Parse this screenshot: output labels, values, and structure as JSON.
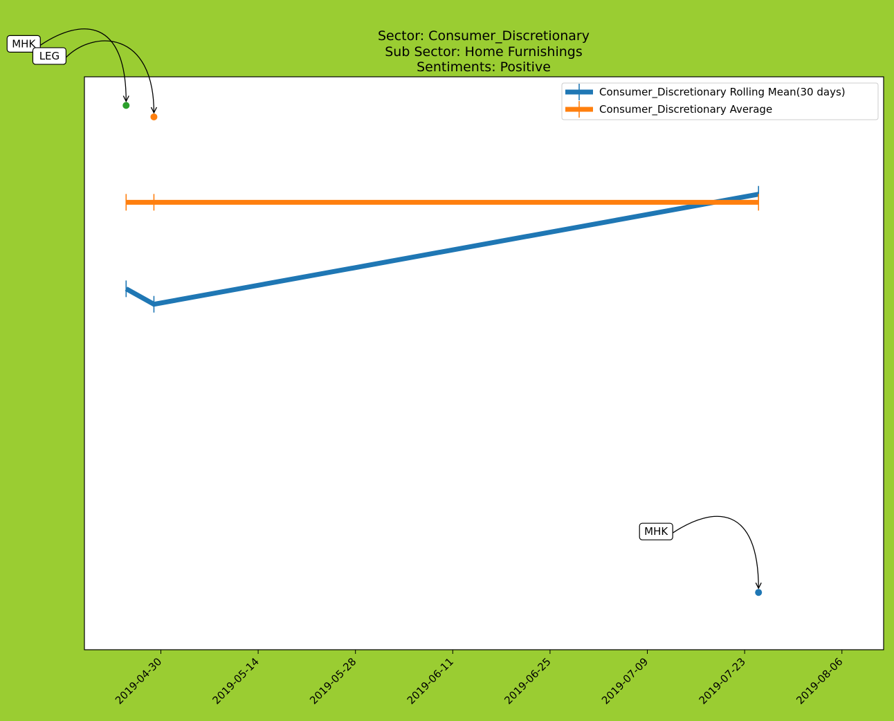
{
  "chart_data": {
    "type": "line",
    "title_lines": [
      "Sector:  Consumer_Discretionary",
      "Sub Sector:  Home Furnishings",
      "Sentiments:  Positive"
    ],
    "background_color": "#9acd32",
    "plot_background": "#ffffff",
    "xlabel": "",
    "ylabel": "",
    "x_ticks": [
      "2019-04-30",
      "2019-05-14",
      "2019-05-28",
      "2019-06-11",
      "2019-06-25",
      "2019-07-09",
      "2019-07-23",
      "2019-08-06"
    ],
    "xlim": [
      "2019-04-19",
      "2019-08-12"
    ],
    "ylim": [
      0,
      1
    ],
    "y_axis_ticks_visible": false,
    "grid": false,
    "legend_position": "top-right",
    "series": [
      {
        "name": "Consumer_Discretionary Rolling Mean(30 days)",
        "color": "#1f77b4",
        "points": [
          {
            "x": "2019-04-25",
            "y": 0.63
          },
          {
            "x": "2019-04-29",
            "y": 0.603
          },
          {
            "x": "2019-07-25",
            "y": 0.795
          }
        ]
      },
      {
        "name": "Consumer_Discretionary Average",
        "color": "#ff7f0e",
        "points": [
          {
            "x": "2019-04-25",
            "y": 0.781
          },
          {
            "x": "2019-04-29",
            "y": 0.781
          },
          {
            "x": "2019-07-25",
            "y": 0.781
          }
        ]
      }
    ],
    "annotations": [
      {
        "label": "MHK",
        "x": "2019-04-25",
        "y": 0.95,
        "color": "#2ca02c"
      },
      {
        "label": "LEG",
        "x": "2019-04-29",
        "y": 0.93,
        "color": "#ff7f0e"
      },
      {
        "label": "MHK",
        "x": "2019-07-25",
        "y": 0.1,
        "color": "#1f77b4"
      }
    ]
  }
}
